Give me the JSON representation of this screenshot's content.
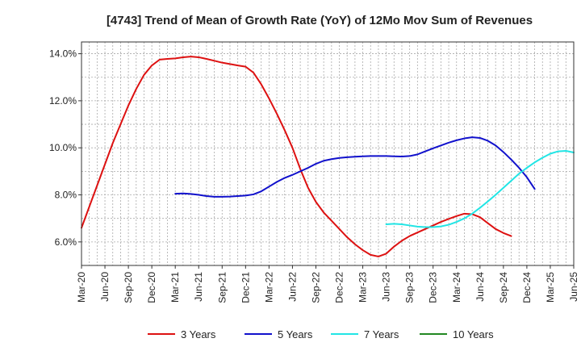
{
  "chart_data": {
    "type": "line",
    "title": "[4743]  Trend of Mean of Growth Rate (YoY) of 12Mo Mov Sum of Revenues",
    "xlabel": "",
    "ylabel": "",
    "ylim": [
      5.0,
      14.5
    ],
    "yticks": [
      6.0,
      8.0,
      10.0,
      12.0,
      14.0
    ],
    "ytick_labels": [
      "6.0%",
      "8.0%",
      "10.0%",
      "12.0%",
      "14.0%"
    ],
    "x_start": "Mar-20",
    "x_end": "Jun-25",
    "x_tick_labels": [
      "Mar-20",
      "Jun-20",
      "Sep-20",
      "Dec-20",
      "Mar-21",
      "Jun-21",
      "Sep-21",
      "Dec-21",
      "Mar-22",
      "Jun-22",
      "Sep-22",
      "Dec-22",
      "Mar-23",
      "Jun-23",
      "Sep-23",
      "Dec-23",
      "Mar-24",
      "Jun-24",
      "Sep-24",
      "Dec-24",
      "Mar-25",
      "Jun-25"
    ],
    "grid": true,
    "legend_position": "bottom",
    "series": [
      {
        "name": "3 Years",
        "color": "#dd1111",
        "start_index": 0,
        "values": [
          6.6,
          7.5,
          8.4,
          9.3,
          10.2,
          11.0,
          11.8,
          12.5,
          13.1,
          13.5,
          13.75,
          13.78,
          13.8,
          13.85,
          13.88,
          13.85,
          13.78,
          13.7,
          13.62,
          13.56,
          13.5,
          13.45,
          13.2,
          12.7,
          12.1,
          11.45,
          10.75,
          10.0,
          9.1,
          8.3,
          7.7,
          7.25,
          6.9,
          6.55,
          6.2,
          5.9,
          5.65,
          5.45,
          5.38,
          5.5,
          5.8,
          6.05,
          6.25,
          6.4,
          6.55,
          6.7,
          6.85,
          6.98,
          7.1,
          7.2,
          7.18,
          7.05,
          6.8,
          6.55,
          6.38,
          6.25
        ]
      },
      {
        "name": "5 Years",
        "color": "#1111cc",
        "start_index": 12,
        "values": [
          8.05,
          8.06,
          8.04,
          8.0,
          7.95,
          7.92,
          7.92,
          7.93,
          7.95,
          7.97,
          8.02,
          8.15,
          8.35,
          8.55,
          8.72,
          8.85,
          9.0,
          9.15,
          9.32,
          9.45,
          9.52,
          9.57,
          9.6,
          9.62,
          9.64,
          9.65,
          9.65,
          9.65,
          9.64,
          9.63,
          9.65,
          9.72,
          9.85,
          9.98,
          10.1,
          10.22,
          10.32,
          10.4,
          10.45,
          10.42,
          10.3,
          10.1,
          9.82,
          9.5,
          9.15,
          8.75,
          8.25
        ]
      },
      {
        "name": "7 Years",
        "color": "#22e5e5",
        "start_index": 39,
        "values": [
          6.75,
          6.77,
          6.75,
          6.7,
          6.65,
          6.63,
          6.63,
          6.66,
          6.73,
          6.85,
          7.0,
          7.2,
          7.45,
          7.72,
          8.0,
          8.3,
          8.6,
          8.9,
          9.15,
          9.38,
          9.58,
          9.75,
          9.85,
          9.87,
          9.8
        ]
      },
      {
        "name": "10 Years",
        "color": "#228822",
        "start_index": 0,
        "values": []
      }
    ]
  }
}
